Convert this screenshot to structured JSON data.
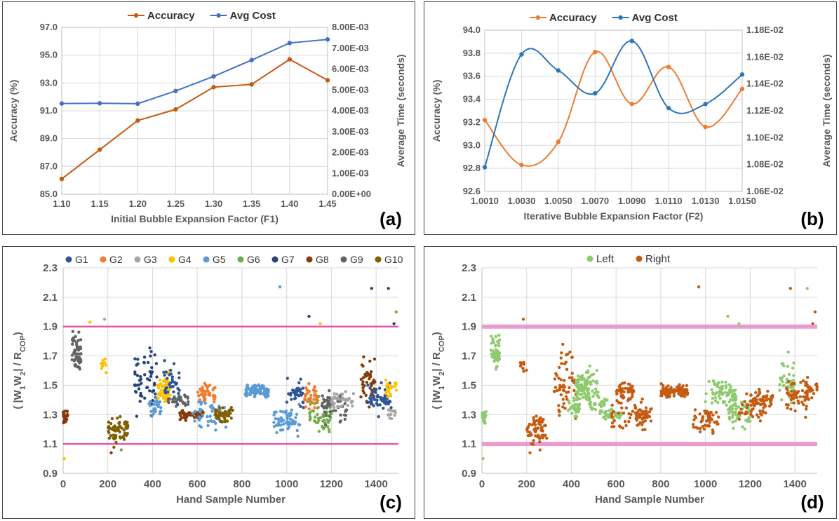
{
  "chart_data": [
    {
      "id": "a",
      "type": "line",
      "panel_label": "(a)",
      "xlabel": "Initial Bubble Expansion Factor (F1)",
      "ylabel": "Accuracy (%)",
      "y2label": "Average Time (seconds)",
      "x_ticks": [
        "1.10",
        "1.15",
        "1.20",
        "1.25",
        "1.30",
        "1.35",
        "1.40",
        "1.45"
      ],
      "x": [
        1.1,
        1.15,
        1.2,
        1.25,
        1.3,
        1.35,
        1.4,
        1.45
      ],
      "xlim": [
        1.1,
        1.45
      ],
      "ylim": [
        85.0,
        97.0
      ],
      "y_ticks": [
        "85.0",
        "87.0",
        "89.0",
        "91.0",
        "93.0",
        "95.0",
        "97.0"
      ],
      "y2lim": [
        0,
        0.008
      ],
      "y2_ticks": [
        "0.00E+00",
        "1.00E-03",
        "2.00E-03",
        "3.00E-03",
        "4.00E-03",
        "5.00E-03",
        "6.00E-03",
        "7.00E-03",
        "8.00E-03"
      ],
      "series": [
        {
          "name": "Accuracy",
          "axis": "left",
          "color": "#C55A11",
          "values": [
            86.1,
            88.2,
            90.3,
            91.1,
            92.7,
            92.9,
            94.7,
            93.2
          ]
        },
        {
          "name": "Avg Cost",
          "axis": "right",
          "color": "#4472C4",
          "values": [
            0.00435,
            0.00436,
            0.00434,
            0.00495,
            0.00565,
            0.00643,
            0.00725,
            0.00742
          ]
        }
      ]
    },
    {
      "id": "b",
      "type": "line",
      "panel_label": "(b)",
      "xlabel": "Iterative Bubble Expansion Factor (F2)",
      "ylabel": "Accuracy (%)",
      "y2label": "Average Time (seconds)",
      "x_ticks": [
        "1.0010",
        "1.0030",
        "1.0050",
        "1.0070",
        "1.0090",
        "1.0110",
        "1.0130",
        "1.0150"
      ],
      "x": [
        1.001,
        1.003,
        1.005,
        1.007,
        1.009,
        1.011,
        1.013,
        1.015
      ],
      "xlim": [
        1.001,
        1.015
      ],
      "ylim": [
        92.6,
        94.0
      ],
      "y_ticks": [
        "92.6",
        "92.8",
        "93.0",
        "93.2",
        "93.4",
        "93.6",
        "93.8",
        "94.0"
      ],
      "y2lim": [
        0.0106,
        0.0118
      ],
      "y2_ticks": [
        "1.06E-02",
        "1.08E-02",
        "1.10E-02",
        "1.12E-02",
        "1.14E-02",
        "1.16E-02",
        "1.18E-02"
      ],
      "series": [
        {
          "name": "Accuracy",
          "axis": "left",
          "color": "#ED7D31",
          "values": [
            93.22,
            92.83,
            93.03,
            93.81,
            93.36,
            93.68,
            93.16,
            93.49
          ]
        },
        {
          "name": "Avg Cost",
          "axis": "right",
          "color": "#2E75B6",
          "values": [
            0.01078,
            0.01162,
            0.0115,
            0.01133,
            0.01172,
            0.01122,
            0.01125,
            0.01147
          ]
        }
      ]
    },
    {
      "id": "c",
      "type": "scatter",
      "panel_label": "(c)",
      "xlabel": "Hand Sample Number",
      "ylabel_parts": [
        "( |W",
        "1",
        "W",
        "2",
        "| / R",
        "COP",
        ")"
      ],
      "xlim": [
        0,
        1500
      ],
      "x_ticks": [
        "0",
        "200",
        "400",
        "600",
        "800",
        "1000",
        "1200",
        "1400"
      ],
      "ylim": [
        0.9,
        2.3
      ],
      "y_ticks": [
        "0.9",
        "1.1",
        "1.3",
        "1.5",
        "1.7",
        "1.9",
        "2.1",
        "2.3"
      ],
      "reference_lines": [
        1.1,
        1.9
      ],
      "reference_color": "#E040A0",
      "legend": [
        {
          "name": "G1",
          "color": "#2F5597"
        },
        {
          "name": "G2",
          "color": "#ED7D31"
        },
        {
          "name": "G3",
          "color": "#A5A5A5"
        },
        {
          "name": "G4",
          "color": "#FFC000"
        },
        {
          "name": "G5",
          "color": "#5B9BD5"
        },
        {
          "name": "G6",
          "color": "#70AD47"
        },
        {
          "name": "G7",
          "color": "#264478"
        },
        {
          "name": "G8",
          "color": "#843C0C"
        },
        {
          "name": "G9",
          "color": "#636363"
        },
        {
          "name": "G10",
          "color": "#7F6000"
        }
      ],
      "clusters": [
        {
          "x": [
            0,
            20
          ],
          "y": [
            1.22,
            1.35
          ],
          "n": 25,
          "group": "G8"
        },
        {
          "x": [
            40,
            80
          ],
          "y": [
            1.55,
            1.9
          ],
          "n": 55,
          "group": "G9"
        },
        {
          "x": [
            170,
            200
          ],
          "y": [
            1.55,
            1.7
          ],
          "n": 10,
          "group": "G4"
        },
        {
          "x": [
            200,
            290
          ],
          "y": [
            1.05,
            1.35
          ],
          "n": 60,
          "group": "G10"
        },
        {
          "x": [
            320,
            420
          ],
          "y": [
            1.2,
            1.85
          ],
          "n": 55,
          "group": "G7"
        },
        {
          "x": [
            380,
            440
          ],
          "y": [
            1.25,
            1.45
          ],
          "n": 30,
          "group": "G5"
        },
        {
          "x": [
            420,
            480
          ],
          "y": [
            1.35,
            1.62
          ],
          "n": 60,
          "group": "G4"
        },
        {
          "x": [
            450,
            520
          ],
          "y": [
            1.3,
            1.72
          ],
          "n": 35,
          "group": "G1"
        },
        {
          "x": [
            470,
            560
          ],
          "y": [
            1.35,
            1.45
          ],
          "n": 30,
          "group": "G9"
        },
        {
          "x": [
            520,
            630
          ],
          "y": [
            1.25,
            1.35
          ],
          "n": 60,
          "group": "G8"
        },
        {
          "x": [
            600,
            680
          ],
          "y": [
            1.35,
            1.55
          ],
          "n": 45,
          "group": "G2"
        },
        {
          "x": [
            580,
            740
          ],
          "y": [
            1.15,
            1.45
          ],
          "n": 45,
          "group": "G5"
        },
        {
          "x": [
            680,
            760
          ],
          "y": [
            1.22,
            1.38
          ],
          "n": 45,
          "group": "G10"
        },
        {
          "x": [
            800,
            920
          ],
          "y": [
            1.4,
            1.52
          ],
          "n": 90,
          "group": "G5"
        },
        {
          "x": [
            940,
            1060
          ],
          "y": [
            1.12,
            1.4
          ],
          "n": 60,
          "group": "G5"
        },
        {
          "x": [
            1000,
            1080
          ],
          "y": [
            1.3,
            1.6
          ],
          "n": 35,
          "group": "G1"
        },
        {
          "x": [
            1080,
            1140
          ],
          "y": [
            1.3,
            1.55
          ],
          "n": 40,
          "group": "G2"
        },
        {
          "x": [
            1100,
            1200
          ],
          "y": [
            1.12,
            1.45
          ],
          "n": 45,
          "group": "G6"
        },
        {
          "x": [
            1150,
            1270
          ],
          "y": [
            1.2,
            1.5
          ],
          "n": 50,
          "group": "G9"
        },
        {
          "x": [
            1200,
            1300
          ],
          "y": [
            1.3,
            1.5
          ],
          "n": 40,
          "group": "G3"
        },
        {
          "x": [
            1330,
            1400
          ],
          "y": [
            1.3,
            1.75
          ],
          "n": 40,
          "group": "G8"
        },
        {
          "x": [
            1360,
            1470
          ],
          "y": [
            1.25,
            1.6
          ],
          "n": 55,
          "group": "G1"
        },
        {
          "x": [
            1440,
            1500
          ],
          "y": [
            1.4,
            1.55
          ],
          "n": 20,
          "group": "G4"
        },
        {
          "x": [
            1440,
            1500
          ],
          "y": [
            1.25,
            1.35
          ],
          "n": 12,
          "group": "G3"
        }
      ],
      "outliers": [
        {
          "x": 5,
          "y": 1.0,
          "group": "G4"
        },
        {
          "x": 185,
          "y": 1.95,
          "group": "G3"
        },
        {
          "x": 120,
          "y": 1.93,
          "group": "G4"
        },
        {
          "x": 215,
          "y": 1.04,
          "group": "G8"
        },
        {
          "x": 260,
          "y": 1.06,
          "group": "G6"
        },
        {
          "x": 970,
          "y": 2.17,
          "group": "G5"
        },
        {
          "x": 1100,
          "y": 1.97,
          "group": "G7"
        },
        {
          "x": 1150,
          "y": 1.92,
          "group": "G4"
        },
        {
          "x": 1380,
          "y": 2.16,
          "group": "G7"
        },
        {
          "x": 1455,
          "y": 2.16,
          "group": "G7"
        },
        {
          "x": 1490,
          "y": 2.0,
          "group": "G6"
        },
        {
          "x": 1480,
          "y": 1.92,
          "group": "G7"
        }
      ]
    },
    {
      "id": "d",
      "type": "scatter",
      "panel_label": "(d)",
      "xlabel": "Hand Sample Number",
      "ylabel_parts": [
        "( |W",
        "1",
        "W",
        "2",
        "| / R",
        "COP",
        ")"
      ],
      "xlim": [
        0,
        1500
      ],
      "x_ticks": [
        "0",
        "200",
        "400",
        "600",
        "800",
        "1000",
        "1200",
        "1400"
      ],
      "ylim": [
        0.9,
        2.3
      ],
      "y_ticks": [
        "0.9",
        "1.1",
        "1.3",
        "1.5",
        "1.7",
        "1.9",
        "2.1",
        "2.3"
      ],
      "reference_lines": [
        1.1,
        1.9
      ],
      "reference_color": "#E88CC8",
      "legend": [
        {
          "name": "Left",
          "color": "#8FCB6E"
        },
        {
          "name": "Right",
          "color": "#C55A11"
        }
      ],
      "clusters": [
        {
          "x": [
            0,
            20
          ],
          "y": [
            1.22,
            1.35
          ],
          "n": 25,
          "group": "Left"
        },
        {
          "x": [
            40,
            80
          ],
          "y": [
            1.55,
            1.9
          ],
          "n": 55,
          "group": "Left"
        },
        {
          "x": [
            170,
            200
          ],
          "y": [
            1.55,
            1.7
          ],
          "n": 10,
          "group": "Right"
        },
        {
          "x": [
            200,
            290
          ],
          "y": [
            1.05,
            1.35
          ],
          "n": 60,
          "group": "Right"
        },
        {
          "x": [
            320,
            420
          ],
          "y": [
            1.2,
            1.85
          ],
          "n": 55,
          "group": "Right"
        },
        {
          "x": [
            380,
            440
          ],
          "y": [
            1.25,
            1.45
          ],
          "n": 30,
          "group": "Left"
        },
        {
          "x": [
            420,
            480
          ],
          "y": [
            1.35,
            1.62
          ],
          "n": 60,
          "group": "Left"
        },
        {
          "x": [
            450,
            520
          ],
          "y": [
            1.3,
            1.72
          ],
          "n": 35,
          "group": "Left"
        },
        {
          "x": [
            470,
            560
          ],
          "y": [
            1.3,
            1.45
          ],
          "n": 30,
          "group": "Left"
        },
        {
          "x": [
            520,
            630
          ],
          "y": [
            1.25,
            1.35
          ],
          "n": 40,
          "group": "Left"
        },
        {
          "x": [
            600,
            680
          ],
          "y": [
            1.35,
            1.55
          ],
          "n": 45,
          "group": "Right"
        },
        {
          "x": [
            580,
            740
          ],
          "y": [
            1.15,
            1.45
          ],
          "n": 45,
          "group": "Right"
        },
        {
          "x": [
            680,
            760
          ],
          "y": [
            1.22,
            1.38
          ],
          "n": 45,
          "group": "Right"
        },
        {
          "x": [
            800,
            920
          ],
          "y": [
            1.4,
            1.52
          ],
          "n": 90,
          "group": "Right"
        },
        {
          "x": [
            940,
            1060
          ],
          "y": [
            1.12,
            1.4
          ],
          "n": 50,
          "group": "Right"
        },
        {
          "x": [
            1000,
            1080
          ],
          "y": [
            1.3,
            1.6
          ],
          "n": 35,
          "group": "Left"
        },
        {
          "x": [
            1080,
            1140
          ],
          "y": [
            1.3,
            1.55
          ],
          "n": 40,
          "group": "Left"
        },
        {
          "x": [
            1100,
            1200
          ],
          "y": [
            1.12,
            1.45
          ],
          "n": 45,
          "group": "Left"
        },
        {
          "x": [
            1150,
            1270
          ],
          "y": [
            1.2,
            1.5
          ],
          "n": 50,
          "group": "Right"
        },
        {
          "x": [
            1200,
            1300
          ],
          "y": [
            1.3,
            1.5
          ],
          "n": 40,
          "group": "Right"
        },
        {
          "x": [
            1330,
            1400
          ],
          "y": [
            1.3,
            1.75
          ],
          "n": 40,
          "group": "Left"
        },
        {
          "x": [
            1360,
            1470
          ],
          "y": [
            1.25,
            1.6
          ],
          "n": 55,
          "group": "Right"
        },
        {
          "x": [
            1440,
            1500
          ],
          "y": [
            1.4,
            1.55
          ],
          "n": 20,
          "group": "Right"
        }
      ],
      "outliers": [
        {
          "x": 5,
          "y": 1.0,
          "group": "Left"
        },
        {
          "x": 185,
          "y": 1.95,
          "group": "Right"
        },
        {
          "x": 215,
          "y": 1.04,
          "group": "Right"
        },
        {
          "x": 260,
          "y": 1.06,
          "group": "Right"
        },
        {
          "x": 970,
          "y": 2.17,
          "group": "Right"
        },
        {
          "x": 1100,
          "y": 1.97,
          "group": "Left"
        },
        {
          "x": 1150,
          "y": 1.92,
          "group": "Left"
        },
        {
          "x": 1380,
          "y": 2.16,
          "group": "Right"
        },
        {
          "x": 1455,
          "y": 2.16,
          "group": "Left"
        },
        {
          "x": 1490,
          "y": 2.0,
          "group": "Right"
        },
        {
          "x": 1480,
          "y": 1.92,
          "group": "Right"
        }
      ]
    }
  ]
}
